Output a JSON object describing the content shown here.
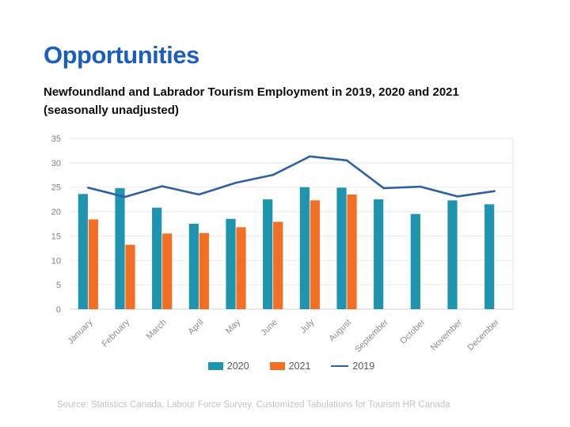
{
  "title": "Opportunities",
  "subtitle_line1": "Newfoundland and Labrador Tourism Employment in 2019, 2020 and 2021",
  "subtitle_line2": "(seasonally unadjusted)",
  "source": "Source: Statistics Canada, Labour Force Survey. Customized Tabulations for Tourism HR Canada",
  "colors": {
    "title_blue": "#1b5ec1",
    "bar_2020_teal": "#1e94af",
    "bar_2021_orange": "#f26f23",
    "line_2019_blue": "#2e5fa9",
    "gridline": "#e9e9e9",
    "axis_line": "#d2d2d2",
    "axis_label_gray": "#7f7f7f",
    "legend_text_gray": "#595959",
    "source_gray": "#c3c3c3"
  },
  "chart_data": {
    "type": "bar",
    "subtype": "combo-bar-line",
    "title": "Newfoundland and Labrador Tourism Employment in 2019, 2020 and 2021 (seasonally unadjusted)",
    "categories": [
      "January",
      "February",
      "March",
      "April",
      "May",
      "June",
      "July",
      "August",
      "September",
      "October",
      "November",
      "December"
    ],
    "series": [
      {
        "name": "2020",
        "type": "bar",
        "values": [
          23.6,
          24.8,
          20.8,
          17.5,
          18.5,
          22.5,
          25.0,
          24.9,
          22.5,
          19.5,
          22.3,
          21.5
        ]
      },
      {
        "name": "2021",
        "type": "bar",
        "values": [
          18.4,
          13.2,
          15.5,
          15.6,
          16.8,
          17.9,
          22.3,
          23.5,
          null,
          null,
          null,
          null
        ]
      },
      {
        "name": "2019",
        "type": "line",
        "values": [
          24.9,
          23.0,
          25.2,
          23.5,
          25.9,
          27.5,
          31.3,
          30.5,
          24.8,
          25.1,
          23.1,
          24.2
        ]
      }
    ],
    "xlabel": "",
    "ylabel": "",
    "ylim": [
      0,
      35
    ],
    "ytick_step": 5,
    "yticks": [
      0,
      5,
      10,
      15,
      20,
      25,
      30,
      35
    ],
    "grid": true,
    "legend_position": "bottom"
  }
}
